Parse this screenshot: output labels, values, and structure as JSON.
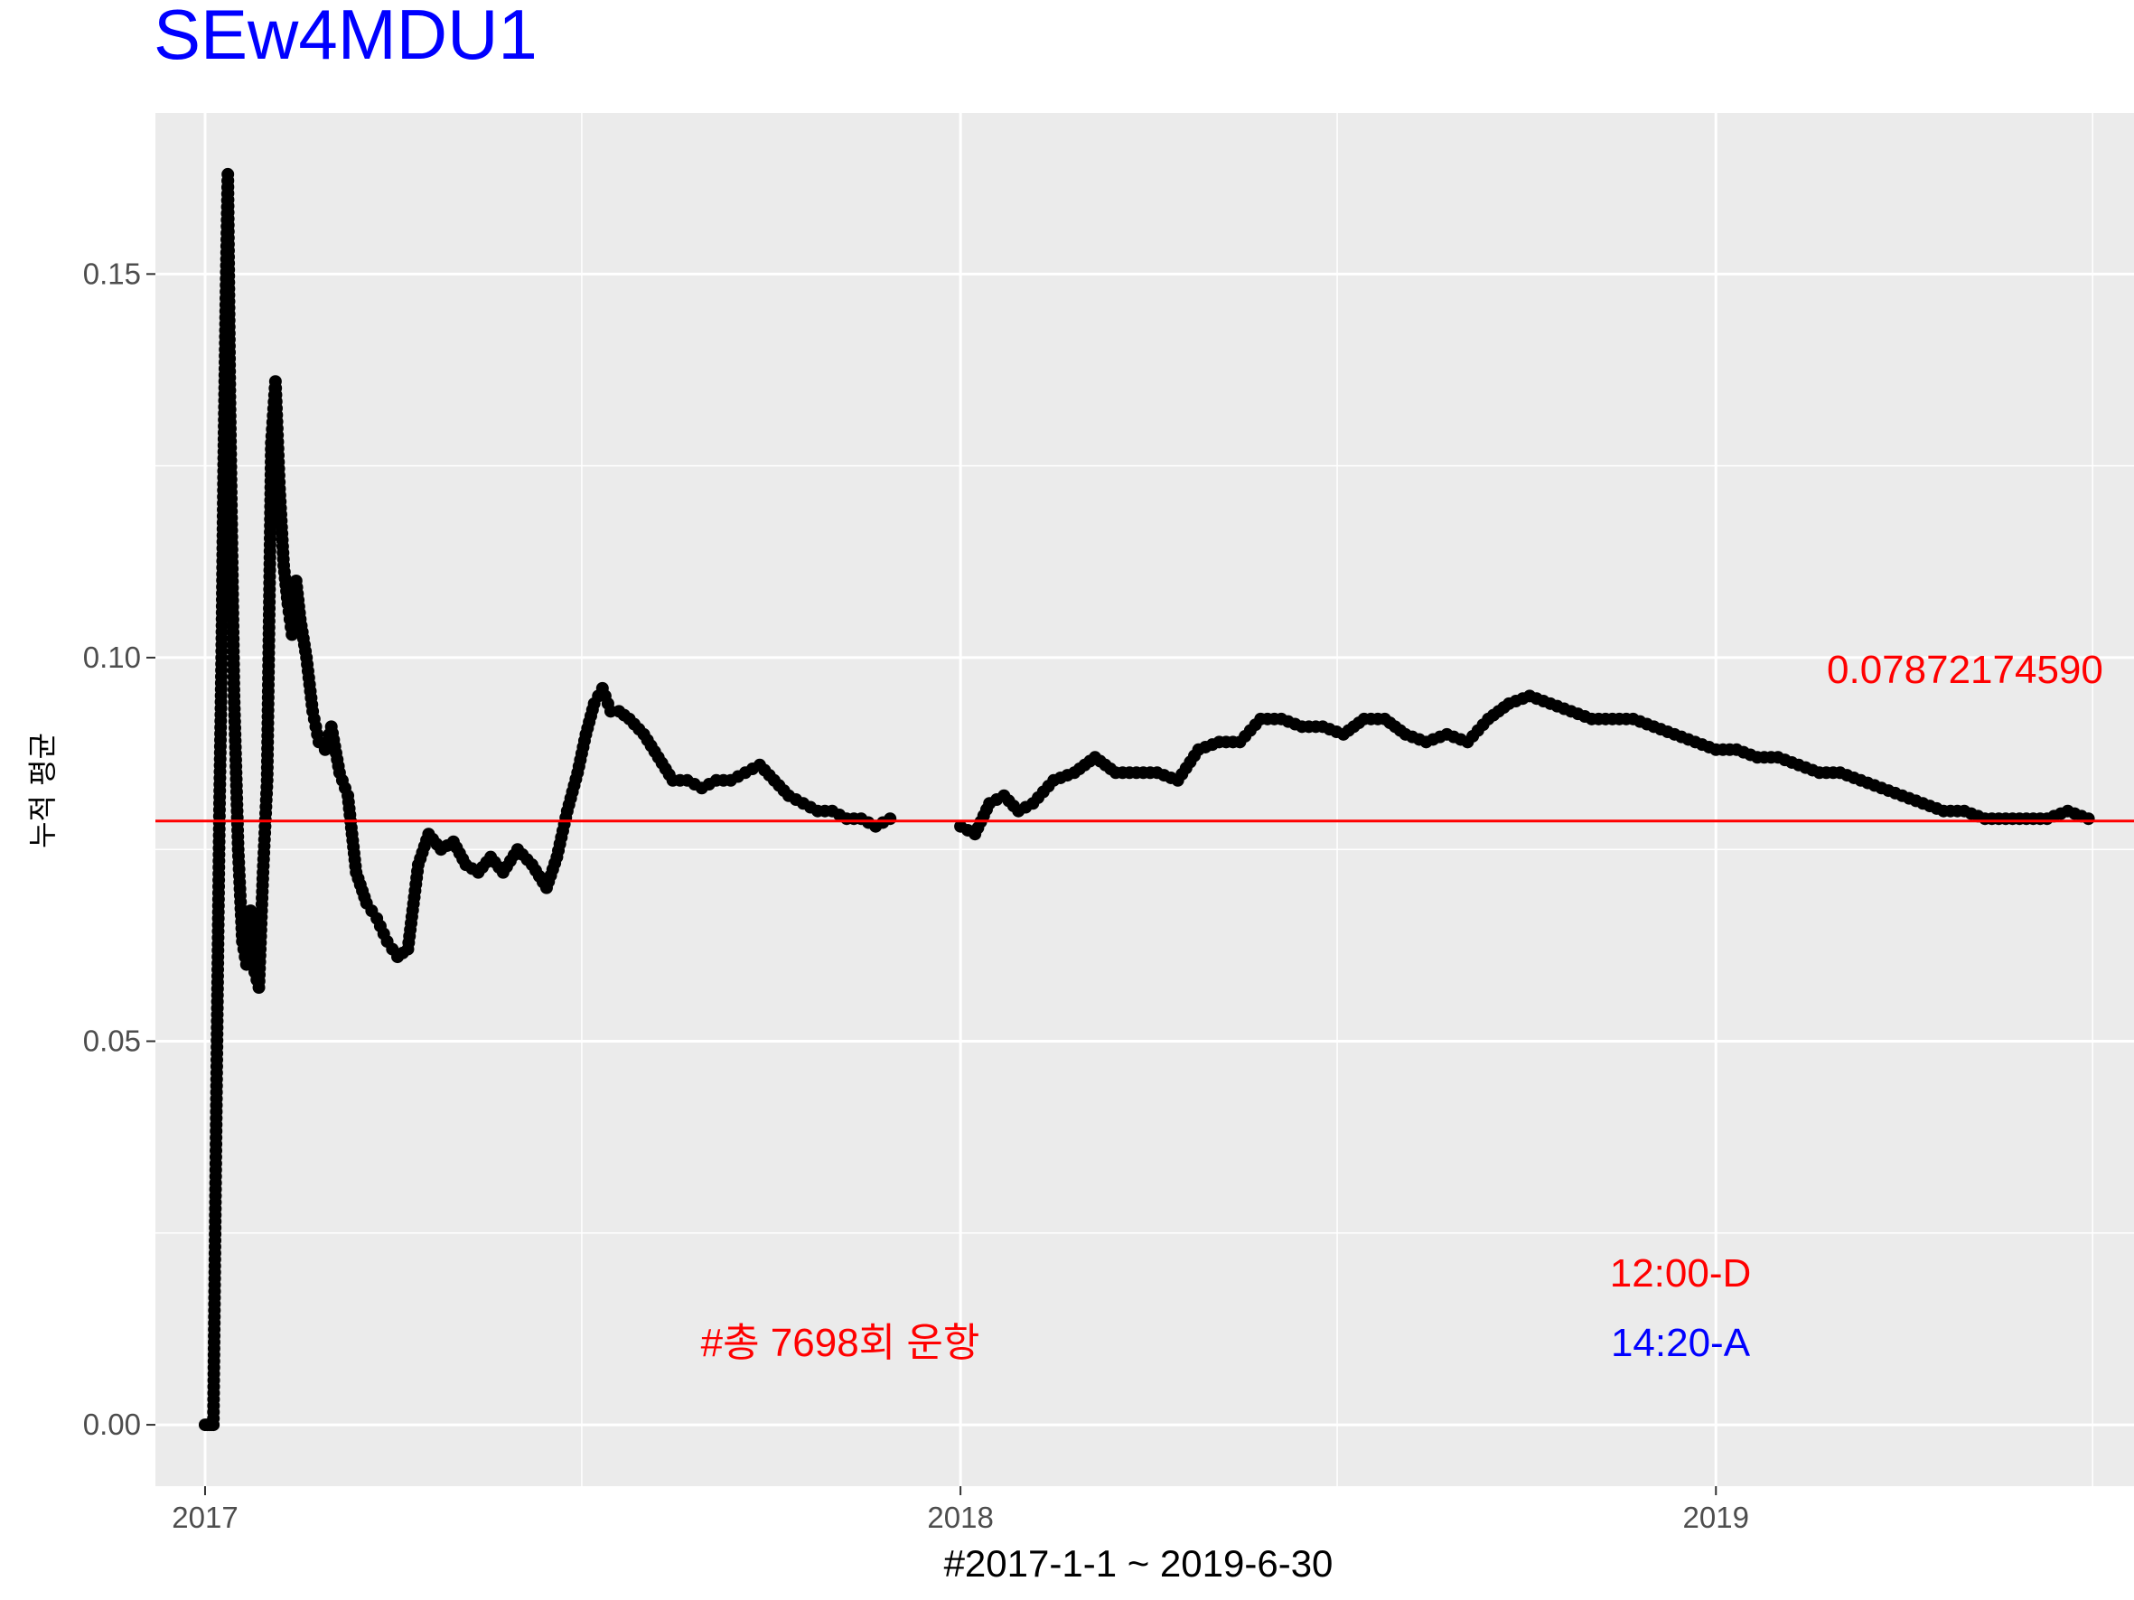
{
  "chart_data": {
    "type": "line",
    "title": "SEw4MDU1",
    "xlabel": "#2017-1-1 ~ 2019-6-30",
    "ylabel": "누적 평균",
    "x_ticks": [
      "2017",
      "2018",
      "2019"
    ],
    "y_ticks": [
      "0.00",
      "0.05",
      "0.10",
      "0.15"
    ],
    "xlim": [
      "2016-12-08",
      "2019-07-22"
    ],
    "ylim": [
      -0.008,
      0.171
    ],
    "grid": true,
    "reference_line": {
      "value": 0.0787,
      "color": "#ff0000"
    },
    "annotations": {
      "mean_value": "0.07872174590",
      "departure": "12:00-D",
      "arrival": "14:20-A",
      "flights": "#총 7698회 운항"
    },
    "colors": {
      "title": "#0000ff",
      "line": "#000000",
      "mean": "#ff0000",
      "departure": "#ff0000",
      "arrival": "#0000ff",
      "panel": "#ebebeb",
      "grid": "#ffffff"
    },
    "series": [
      {
        "x": [
          "2017-01-01",
          "2017-01-02",
          "2017-01-03",
          "2017-01-04",
          "2017-01-05",
          "2017-01-06",
          "2017-01-07",
          "2017-01-08",
          "2017-01-09",
          "2017-01-10",
          "2017-01-11",
          "2017-01-12",
          "2017-01-13",
          "2017-01-15",
          "2017-01-17",
          "2017-01-19",
          "2017-01-21",
          "2017-01-23",
          "2017-01-25",
          "2017-01-27",
          "2017-01-29",
          "2017-01-31",
          "2017-02-02",
          "2017-02-04",
          "2017-02-06",
          "2017-02-08",
          "2017-02-10",
          "2017-02-12",
          "2017-02-14",
          "2017-02-16",
          "2017-02-19",
          "2017-02-22",
          "2017-02-25",
          "2017-02-28",
          "2017-03-03",
          "2017-03-07",
          "2017-03-11",
          "2017-03-15",
          "2017-03-20",
          "2017-03-25",
          "2017-03-30",
          "2017-04-04",
          "2017-04-09",
          "2017-04-14",
          "2017-04-19",
          "2017-04-25",
          "2017-05-01",
          "2017-05-07",
          "2017-05-13",
          "2017-05-19",
          "2017-05-25",
          "2017-06-01",
          "2017-06-08",
          "2017-06-15",
          "2017-06-20",
          "2017-06-25",
          "2017-06-30",
          "2017-07-04",
          "2017-07-08",
          "2017-07-12",
          "2017-07-16",
          "2017-07-20",
          "2017-07-25",
          "2017-08-01",
          "2017-08-08",
          "2017-08-15",
          "2017-08-22",
          "2017-08-29",
          "2017-09-05",
          "2017-09-12",
          "2017-09-19",
          "2017-09-26",
          "2017-10-03",
          "2017-10-10",
          "2017-10-17",
          "2017-10-24",
          "2017-10-31",
          "2017-11-07",
          "2017-11-14",
          "2017-11-21",
          "2017-11-28"
        ],
        "values": [
          0.0,
          0.0,
          0.0,
          0.0,
          0.0,
          0.029,
          0.056,
          0.081,
          0.1,
          0.126,
          0.146,
          0.163,
          0.134,
          0.095,
          0.075,
          0.063,
          0.06,
          0.067,
          0.059,
          0.057,
          0.072,
          0.084,
          0.128,
          0.136,
          0.122,
          0.112,
          0.107,
          0.103,
          0.11,
          0.105,
          0.1,
          0.093,
          0.089,
          0.088,
          0.091,
          0.085,
          0.082,
          0.072,
          0.068,
          0.066,
          0.063,
          0.061,
          0.062,
          0.073,
          0.077,
          0.075,
          0.076,
          0.073,
          0.072,
          0.074,
          0.072,
          0.075,
          0.073,
          0.07,
          0.074,
          0.08,
          0.085,
          0.09,
          0.094,
          0.096,
          0.093,
          0.093,
          0.092,
          0.09,
          0.087,
          0.084,
          0.084,
          0.083,
          0.084,
          0.084,
          0.085,
          0.086,
          0.084,
          0.082,
          0.081,
          0.08,
          0.08,
          0.079,
          0.079,
          0.078,
          0.079
        ]
      },
      {
        "x": [
          "2018-01-01",
          "2018-01-08",
          "2018-01-15",
          "2018-01-22",
          "2018-01-29",
          "2018-02-05",
          "2018-02-15",
          "2018-02-25",
          "2018-03-07",
          "2018-03-17",
          "2018-03-27",
          "2018-04-06",
          "2018-04-16",
          "2018-04-26",
          "2018-05-06",
          "2018-05-16",
          "2018-05-26",
          "2018-06-05",
          "2018-06-15",
          "2018-06-25",
          "2018-07-05",
          "2018-07-15",
          "2018-07-25",
          "2018-08-04",
          "2018-08-14",
          "2018-08-24",
          "2018-09-03",
          "2018-09-13",
          "2018-09-23",
          "2018-10-03",
          "2018-10-13",
          "2018-10-23",
          "2018-11-02",
          "2018-11-12",
          "2018-11-22",
          "2018-12-02",
          "2018-12-12",
          "2018-12-22",
          "2019-01-01",
          "2019-01-11",
          "2019-01-21",
          "2019-01-31",
          "2019-02-10",
          "2019-02-20",
          "2019-03-02",
          "2019-03-12",
          "2019-03-22",
          "2019-04-01",
          "2019-04-11",
          "2019-04-21",
          "2019-05-01",
          "2019-05-11",
          "2019-05-21",
          "2019-05-31",
          "2019-06-10",
          "2019-06-20",
          "2019-06-30"
        ],
        "values": [
          0.078,
          0.077,
          0.081,
          0.082,
          0.08,
          0.081,
          0.084,
          0.085,
          0.087,
          0.085,
          0.085,
          0.085,
          0.084,
          0.088,
          0.089,
          0.089,
          0.092,
          0.092,
          0.091,
          0.091,
          0.09,
          0.092,
          0.092,
          0.09,
          0.089,
          0.09,
          0.089,
          0.092,
          0.094,
          0.095,
          0.094,
          0.093,
          0.092,
          0.092,
          0.092,
          0.091,
          0.09,
          0.089,
          0.088,
          0.088,
          0.087,
          0.087,
          0.086,
          0.085,
          0.085,
          0.084,
          0.083,
          0.082,
          0.081,
          0.08,
          0.08,
          0.079,
          0.079,
          0.079,
          0.079,
          0.08,
          0.079
        ]
      }
    ]
  }
}
